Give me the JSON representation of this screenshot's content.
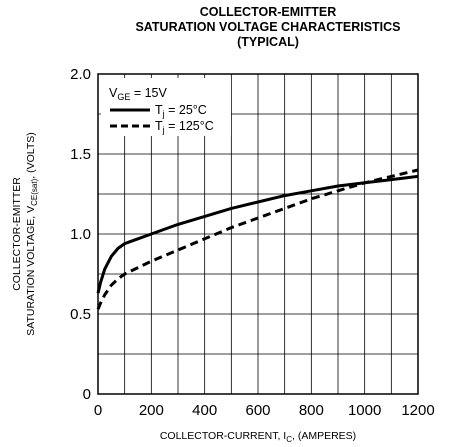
{
  "chart_data": {
    "type": "line",
    "title": [
      "COLLECTOR-EMITTER",
      "SATURATION VOLTAGE CHARACTERISTICS",
      "(TYPICAL)"
    ],
    "xlabel": {
      "main": "COLLECTOR-CURRENT, I",
      "sub": "C",
      "tail": ", (AMPERES)"
    },
    "ylabel": {
      "line1": "COLLECTOR-EMITTER",
      "line2_main": "SATURATION VOLTAGE, V",
      "line2_sub": "CE(sat)",
      "line2_tail": ", (VOLTS)"
    },
    "xlim": [
      0,
      1200
    ],
    "ylim": [
      0,
      2.0
    ],
    "xticks": [
      0,
      200,
      400,
      600,
      800,
      1000,
      1200
    ],
    "yticks": [
      0,
      0.5,
      1.0,
      1.5,
      2.0
    ],
    "xtick_labels": [
      "0",
      "200",
      "400",
      "600",
      "800",
      "1000",
      "1200"
    ],
    "ytick_labels": [
      "0",
      "0.5",
      "1.0",
      "1.5",
      "2.0"
    ],
    "grid": true,
    "minor_x_step": 100,
    "legend": {
      "position": "top-left",
      "condition": {
        "main": "V",
        "sub": "GE",
        "tail": " = 15V"
      }
    },
    "series": [
      {
        "label_main": "T",
        "label_sub": "j",
        "label_tail": " = 25°C",
        "style": "solid",
        "x": [
          0,
          10,
          25,
          50,
          75,
          100,
          150,
          200,
          300,
          400,
          500,
          600,
          700,
          800,
          900,
          1000,
          1100,
          1200
        ],
        "y": [
          0.63,
          0.7,
          0.78,
          0.86,
          0.91,
          0.94,
          0.97,
          1.0,
          1.06,
          1.11,
          1.16,
          1.2,
          1.24,
          1.27,
          1.3,
          1.32,
          1.34,
          1.36
        ]
      },
      {
        "label_main": "T",
        "label_sub": "j",
        "label_tail": " = 125°C",
        "style": "dashed",
        "x": [
          0,
          10,
          25,
          50,
          75,
          100,
          150,
          200,
          300,
          400,
          500,
          600,
          700,
          800,
          900,
          1000,
          1100,
          1200
        ],
        "y": [
          0.53,
          0.57,
          0.62,
          0.68,
          0.72,
          0.75,
          0.79,
          0.83,
          0.9,
          0.97,
          1.04,
          1.1,
          1.16,
          1.22,
          1.27,
          1.32,
          1.36,
          1.4
        ]
      }
    ]
  }
}
